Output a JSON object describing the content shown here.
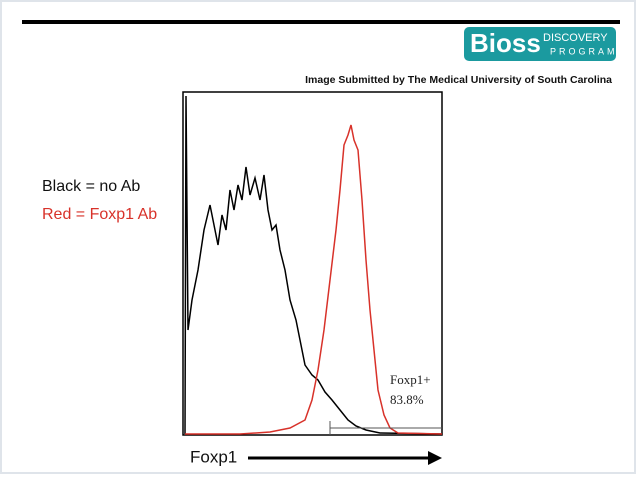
{
  "logo": {
    "name": "Bioss",
    "line1": "DISCOVERY",
    "line2": "PROGRAM"
  },
  "caption": "Image Submitted by The Medical University of South Carolina",
  "legend": [
    "Black = no Ab",
    "Red = Foxp1 Ab"
  ],
  "gate": {
    "label": "Foxp1+",
    "percent": "83.8%"
  },
  "x_axis_label": "Foxp1"
}
